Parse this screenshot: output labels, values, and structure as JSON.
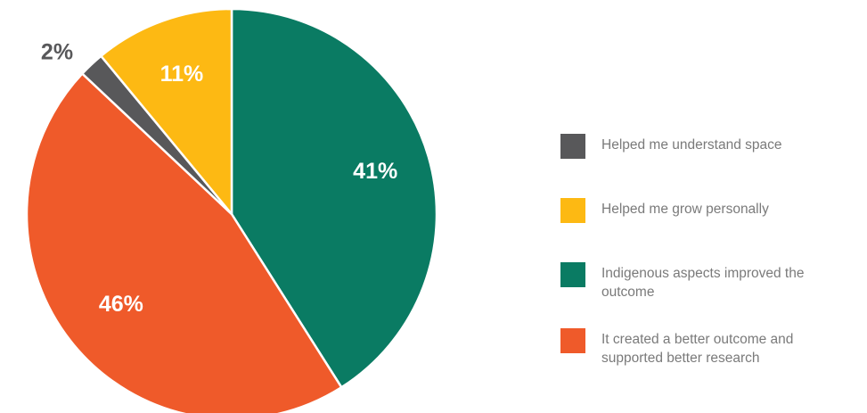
{
  "chart_data": {
    "type": "pie",
    "slices": [
      {
        "label": "Indigenous aspects improved the outcome",
        "value": 41,
        "value_label": "41%",
        "color": "#0a7b63",
        "label_color": "#ffffff"
      },
      {
        "label": "It created a better outcome and supported better research",
        "value": 46,
        "value_label": "46%",
        "color": "#ef5a2a",
        "label_color": "#ffffff"
      },
      {
        "label": "Helped me understand space",
        "value": 2,
        "value_label": "2%",
        "color": "#58585a",
        "label_color": "#58585a"
      },
      {
        "label": "Helped me grow personally",
        "value": 11,
        "value_label": "11%",
        "color": "#fdb913",
        "label_color": "#ffffff"
      }
    ],
    "legend": {
      "placement": "right",
      "entries": [
        {
          "label": "Helped me understand space",
          "color": "#58585a"
        },
        {
          "label": "Helped me grow personally",
          "color": "#fdb913"
        },
        {
          "label": "Indigenous aspects improved the outcome",
          "color": "#0a7b63"
        },
        {
          "label": "It created a better outcome and supported better research",
          "color": "#ef5a2a"
        }
      ]
    }
  }
}
